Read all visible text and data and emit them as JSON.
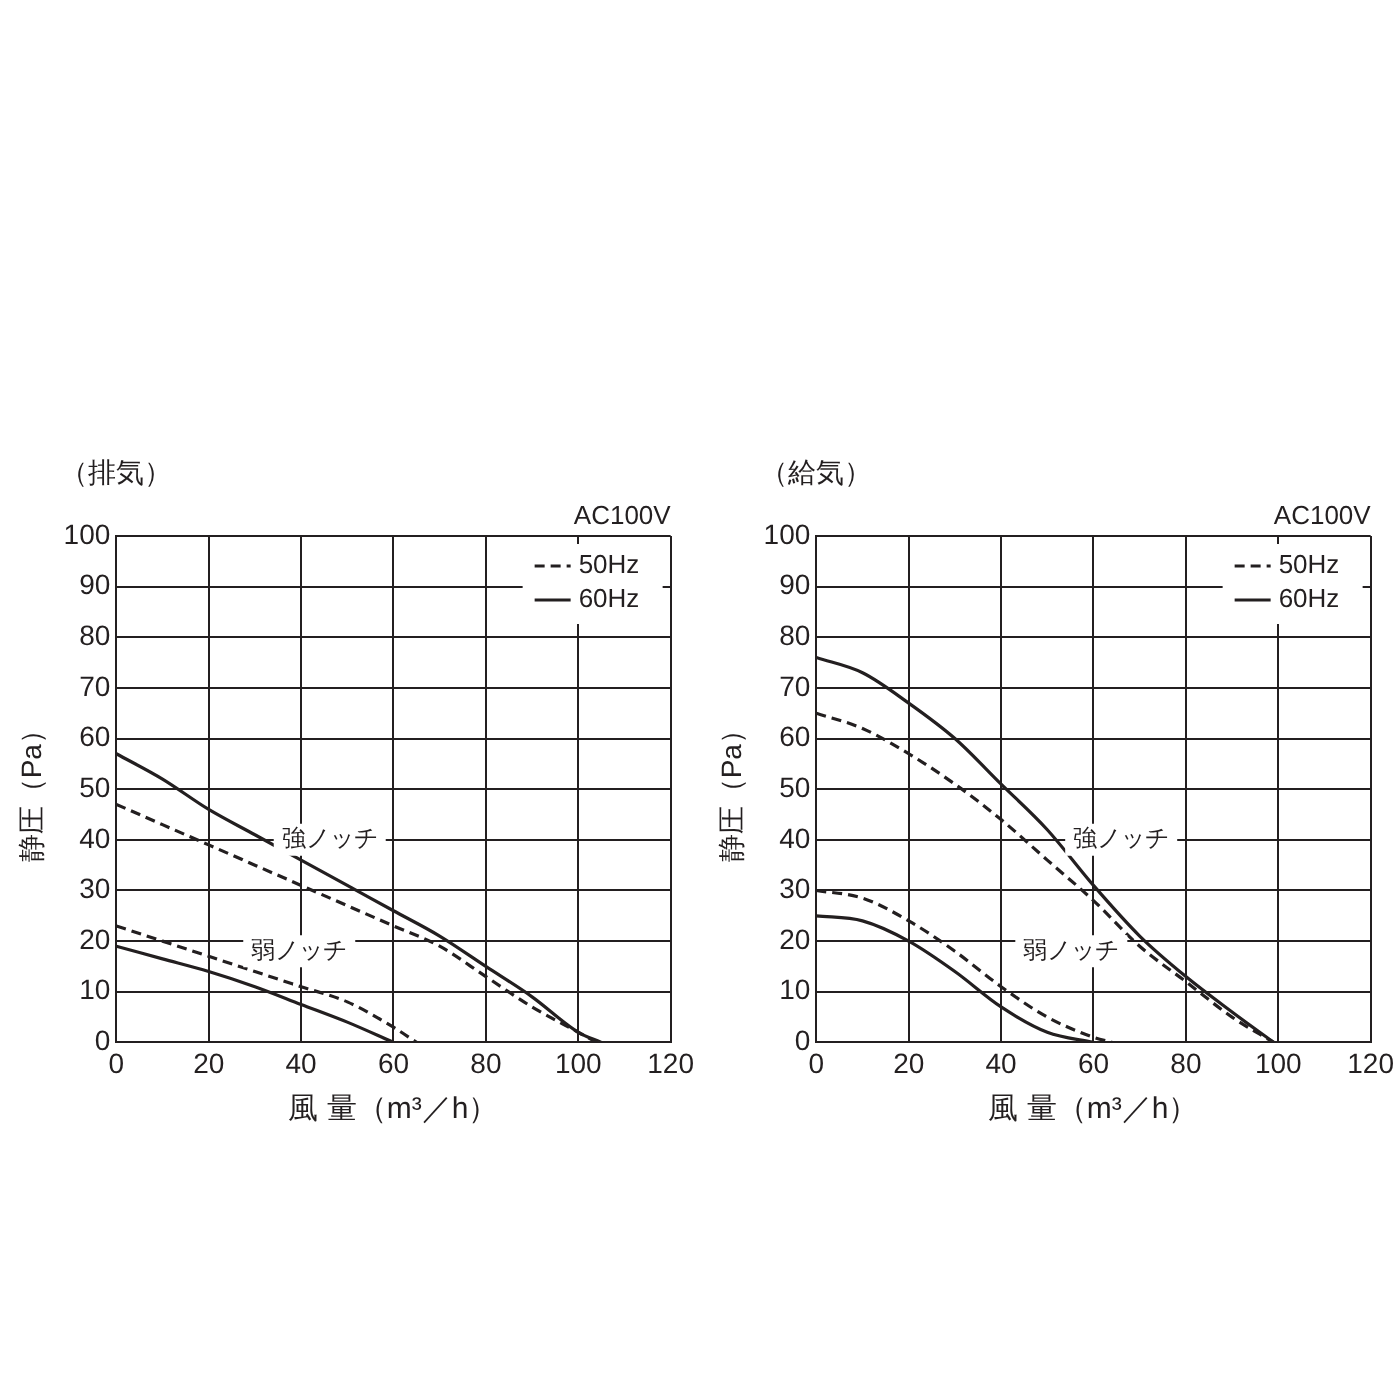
{
  "chart_data": [
    {
      "type": "line",
      "title": "（排気）",
      "xlabel": "風 量（m³／h）",
      "ylabel": "静圧（Pa）",
      "legend_title": "AC100V",
      "legend": "top right",
      "grid": true,
      "marker": "none",
      "xlim": [
        0,
        120
      ],
      "xticks": [
        0,
        20,
        40,
        60,
        80,
        100,
        120
      ],
      "ylim": [
        0,
        100
      ],
      "yticks": [
        0,
        10,
        20,
        30,
        40,
        50,
        60,
        70,
        80,
        90,
        100
      ],
      "series": [
        {
          "name": "50Hz",
          "color": "#231f20",
          "line_style": "dashed",
          "x": [
            0,
            10,
            20,
            30,
            40,
            50,
            60,
            70,
            80,
            90,
            100,
            104
          ],
          "values": [
            47,
            43,
            39,
            35,
            31,
            27,
            23,
            19,
            13,
            7,
            2,
            0
          ]
        },
        {
          "name": "60Hz",
          "color": "#231f20",
          "line_style": "solid",
          "x": [
            0,
            10,
            20,
            30,
            40,
            50,
            60,
            70,
            80,
            90,
            100,
            105
          ],
          "values": [
            57,
            52,
            46,
            41,
            36,
            31,
            26,
            21,
            15,
            9,
            2,
            0
          ]
        },
        {
          "color": "#231f20",
          "line_style": "dashed",
          "x": [
            0,
            10,
            20,
            30,
            40,
            50,
            60,
            65
          ],
          "values": [
            23,
            20,
            17,
            14,
            11,
            8,
            3,
            0
          ]
        },
        {
          "color": "#231f20",
          "line_style": "solid",
          "x": [
            0,
            10,
            20,
            30,
            40,
            50,
            60
          ],
          "values": [
            19,
            16.5,
            14,
            11,
            7.5,
            4,
            0
          ]
        }
      ],
      "annotations": [
        "強ノッチ",
        "弱ノッチ"
      ]
    },
    {
      "type": "line",
      "title": "（給気）",
      "xlabel": "風 量（m³／h）",
      "ylabel": "静圧（Pa）",
      "legend_title": "AC100V",
      "legend": "top right",
      "grid": true,
      "marker": "none",
      "xlim": [
        0,
        120
      ],
      "xticks": [
        0,
        20,
        40,
        60,
        80,
        100,
        120
      ],
      "ylim": [
        0,
        100
      ],
      "yticks": [
        0,
        10,
        20,
        30,
        40,
        50,
        60,
        70,
        80,
        90,
        100
      ],
      "series": [
        {
          "name": "50Hz",
          "color": "#231f20",
          "line_style": "dashed",
          "x": [
            0,
            10,
            20,
            30,
            40,
            50,
            60,
            70,
            80,
            90,
            99
          ],
          "values": [
            65,
            62,
            57,
            51,
            44,
            36,
            28,
            19,
            12,
            5,
            0
          ]
        },
        {
          "name": "60Hz",
          "color": "#231f20",
          "line_style": "solid",
          "x": [
            0,
            10,
            20,
            30,
            40,
            50,
            60,
            70,
            80,
            90,
            99
          ],
          "values": [
            76,
            73,
            67,
            60,
            51,
            42,
            31,
            21,
            13,
            6,
            0
          ]
        },
        {
          "color": "#231f20",
          "line_style": "dashed",
          "x": [
            0,
            10,
            20,
            30,
            40,
            50,
            60,
            64
          ],
          "values": [
            30,
            28.5,
            24,
            18,
            11,
            5,
            1,
            0
          ]
        },
        {
          "color": "#231f20",
          "line_style": "solid",
          "x": [
            0,
            10,
            20,
            30,
            40,
            50,
            60
          ],
          "values": [
            25,
            24,
            20,
            14,
            7,
            2,
            0
          ]
        }
      ],
      "annotations": [
        "強ノッチ",
        "弱ノッチ"
      ]
    }
  ]
}
